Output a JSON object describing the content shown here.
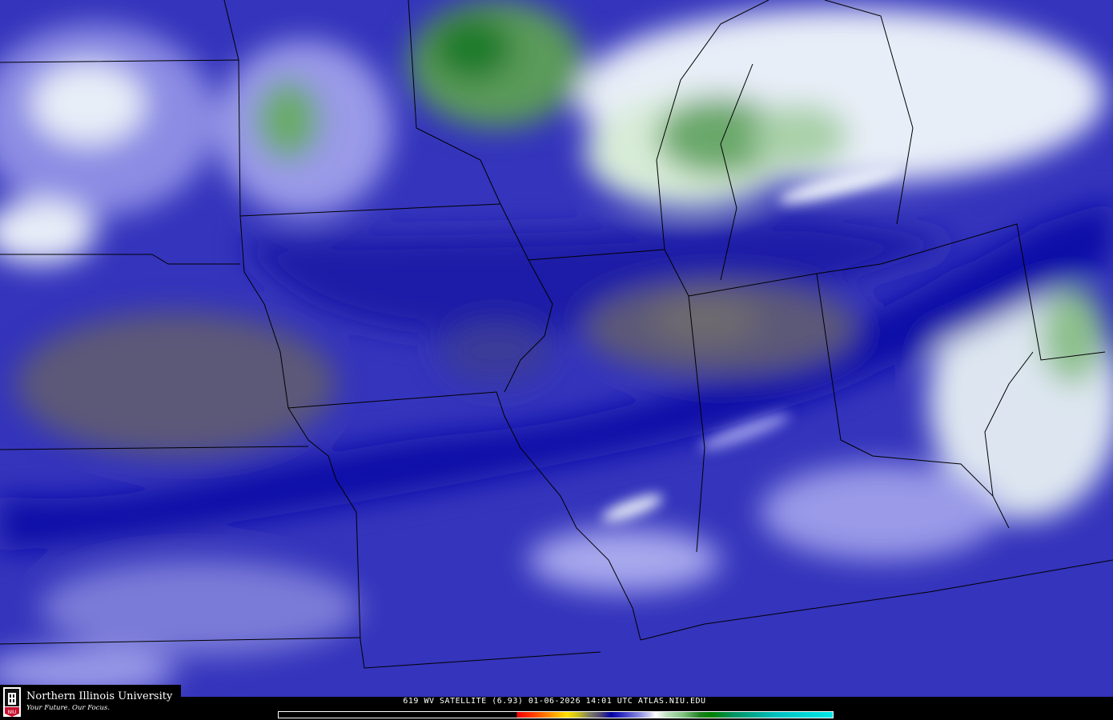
{
  "caption": "619 WV SATELLITE (6.93) 01-06-2026 14:01 UTC  ATLAS.NIU.EDU",
  "logo": {
    "university": "Northern Illinois University",
    "tagline": "Your Future. Our Focus.",
    "badge": "NIU"
  },
  "colors": {
    "moist_high": "#1f7a2a",
    "moist": "#e8eef8",
    "medium": "#3a3ac0",
    "dry": "#0000a0",
    "very_dry": "#5c5878"
  },
  "colorbar": {
    "palette": [
      "#000000",
      "#f00000",
      "#ff9000",
      "#ffe000",
      "#808060",
      "#0000a0",
      "#8888e0",
      "#ffffff",
      "#80c080",
      "#008000",
      "#00e8e8"
    ]
  }
}
